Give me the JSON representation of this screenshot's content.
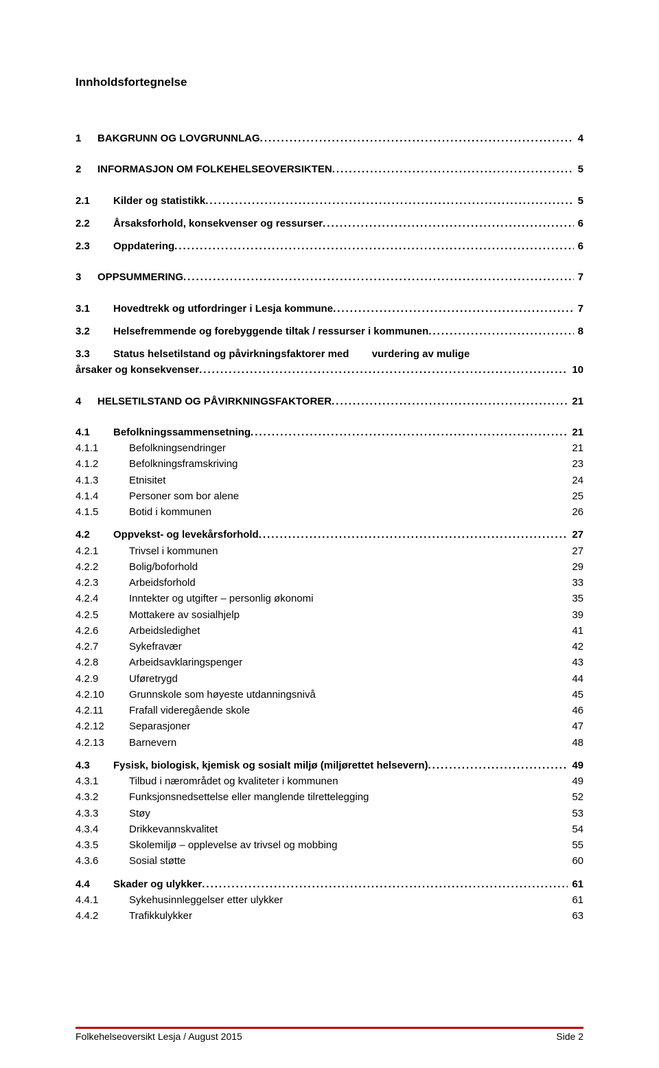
{
  "title": "Innholdsfortegnelse",
  "footer_left": "Folkehelseoversikt Lesja / August 2015",
  "footer_right": "Side 2",
  "entries": [
    {
      "level": 1,
      "num": "1",
      "label": "BAKGRUNN OG LOVGRUNNLAG",
      "page": "4"
    },
    {
      "level": 1,
      "num": "2",
      "label": "INFORMASJON OM FOLKEHELSEOVERSIKTEN",
      "page": "5"
    },
    {
      "level": 2,
      "num": "2.1",
      "label": "Kilder og statistikk",
      "page": "5",
      "first": true
    },
    {
      "level": 2,
      "num": "2.2",
      "label": "Årsaksforhold, konsekvenser og ressurser",
      "page": "6"
    },
    {
      "level": 2,
      "num": "2.3",
      "label": "Oppdatering",
      "page": "6"
    },
    {
      "level": 1,
      "num": "3",
      "label": "OPPSUMMERING",
      "page": "7"
    },
    {
      "level": 2,
      "num": "3.1",
      "label": "Hovedtrekk og utfordringer i Lesja kommune",
      "page": "7",
      "first": true
    },
    {
      "level": 2,
      "num": "3.2",
      "label": "Helsefremmende og forebyggende tiltak / ressurser i kommunen",
      "page": "8"
    },
    {
      "level": 2,
      "num": "3.3",
      "label": "Status helsetilstand og påvirkningsfaktorer med        vurdering av mulige årsaker og konsekvenser",
      "page": "10",
      "wrap": true
    },
    {
      "level": 1,
      "num": "4",
      "label": "HELSETILSTAND OG PÅVIRKNINGSFAKTORER",
      "page": "21"
    },
    {
      "level": 2,
      "num": "4.1",
      "label": "Befolkningssammensetning",
      "page": "21",
      "first": true
    },
    {
      "level": 3,
      "num": "4.1.1",
      "label": "Befolkningsendringer",
      "page": "21"
    },
    {
      "level": 3,
      "num": "4.1.2",
      "label": "Befolkningsframskriving",
      "page": "23"
    },
    {
      "level": 3,
      "num": "4.1.3",
      "label": "Etnisitet",
      "page": "24"
    },
    {
      "level": 3,
      "num": "4.1.4",
      "label": "Personer som bor alene",
      "page": "25"
    },
    {
      "level": 3,
      "num": "4.1.5",
      "label": "Botid i kommunen",
      "page": "26"
    },
    {
      "level": 2,
      "num": "4.2",
      "label": "Oppvekst- og levekårsforhold",
      "page": "27"
    },
    {
      "level": 3,
      "num": "4.2.1",
      "label": "Trivsel i kommunen",
      "page": "27"
    },
    {
      "level": 3,
      "num": "4.2.2",
      "label": "Bolig/boforhold",
      "page": "29"
    },
    {
      "level": 3,
      "num": "4.2.3",
      "label": "Arbeidsforhold",
      "page": "33"
    },
    {
      "level": 3,
      "num": "4.2.4",
      "label": "Inntekter og utgifter – personlig økonomi",
      "page": "35"
    },
    {
      "level": 3,
      "num": "4.2.5",
      "label": "Mottakere av sosialhjelp",
      "page": "39"
    },
    {
      "level": 3,
      "num": "4.2.6",
      "label": "Arbeidsledighet",
      "page": "41"
    },
    {
      "level": 3,
      "num": "4.2.7",
      "label": "Sykefravær",
      "page": "42"
    },
    {
      "level": 3,
      "num": "4.2.8",
      "label": "Arbeidsavklaringspenger",
      "page": "43"
    },
    {
      "level": 3,
      "num": "4.2.9",
      "label": "Uføretrygd",
      "page": "44"
    },
    {
      "level": 3,
      "num": "4.2.10",
      "label": "Grunnskole som høyeste utdanningsnivå",
      "page": "45"
    },
    {
      "level": 3,
      "num": "4.2.11",
      "label": "Frafall videregående skole",
      "page": "46"
    },
    {
      "level": 3,
      "num": "4.2.12",
      "label": "Separasjoner",
      "page": "47"
    },
    {
      "level": 3,
      "num": "4.2.13",
      "label": "Barnevern",
      "page": "48"
    },
    {
      "level": 2,
      "num": "4.3",
      "label": "Fysisk, biologisk, kjemisk og sosialt miljø (miljørettet helsevern)",
      "page": "49"
    },
    {
      "level": 3,
      "num": "4.3.1",
      "label": "Tilbud i nærområdet og kvaliteter i kommunen",
      "page": "49"
    },
    {
      "level": 3,
      "num": "4.3.2",
      "label": "Funksjonsnedsettelse eller manglende tilrettelegging",
      "page": "52"
    },
    {
      "level": 3,
      "num": "4.3.3",
      "label": "Støy",
      "page": "53"
    },
    {
      "level": 3,
      "num": "4.3.4",
      "label": "Drikkevannskvalitet",
      "page": "54"
    },
    {
      "level": 3,
      "num": "4.3.5",
      "label": "Skolemiljø – opplevelse av trivsel og mobbing",
      "page": "55"
    },
    {
      "level": 3,
      "num": "4.3.6",
      "label": "Sosial støtte",
      "page": "60"
    },
    {
      "level": 2,
      "num": "4.4",
      "label": "Skader og ulykker",
      "page": "61"
    },
    {
      "level": 3,
      "num": "4.4.1",
      "label": "Sykehusinnleggelser etter ulykker",
      "page": "61"
    },
    {
      "level": 3,
      "num": "4.4.2",
      "label": "Trafikkulykker",
      "page": "63"
    }
  ]
}
